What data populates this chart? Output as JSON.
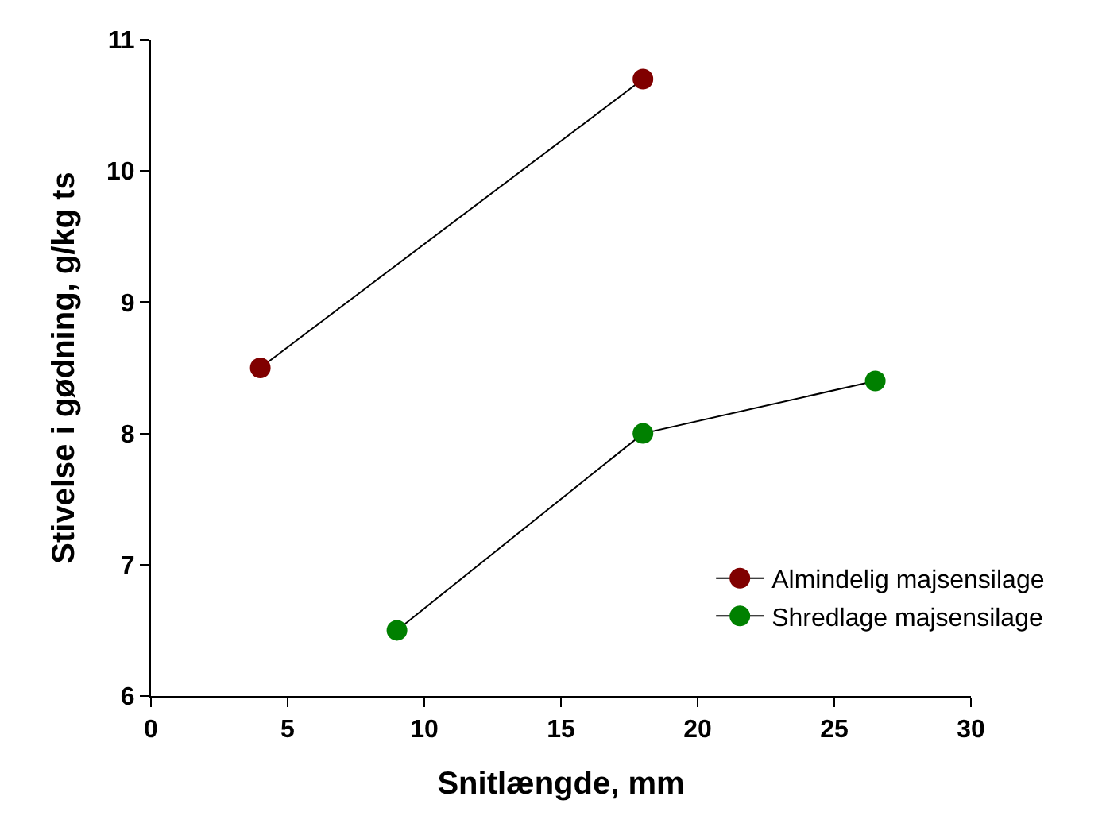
{
  "chart_data": {
    "type": "line",
    "xlabel": "Snitlængde, mm",
    "ylabel": "Stivelse i gødning, g/kg ts",
    "xlim": [
      0,
      30
    ],
    "xticks": [
      0,
      5,
      10,
      15,
      20,
      25,
      30
    ],
    "ylim": [
      6,
      11
    ],
    "yticks": [
      6,
      7,
      8,
      9,
      10,
      11
    ],
    "legend": "bottom right",
    "marker": "circle",
    "line_style": "solid",
    "series": [
      {
        "name": "Almindelig majsensilage",
        "color": "#800000",
        "x": [
          4,
          18
        ],
        "values": [
          8.5,
          10.7
        ]
      },
      {
        "name": "Shredlage majsensilage",
        "color": "#008000",
        "x": [
          9,
          18,
          26.5
        ],
        "values": [
          6.5,
          8.0,
          8.4
        ]
      }
    ]
  }
}
